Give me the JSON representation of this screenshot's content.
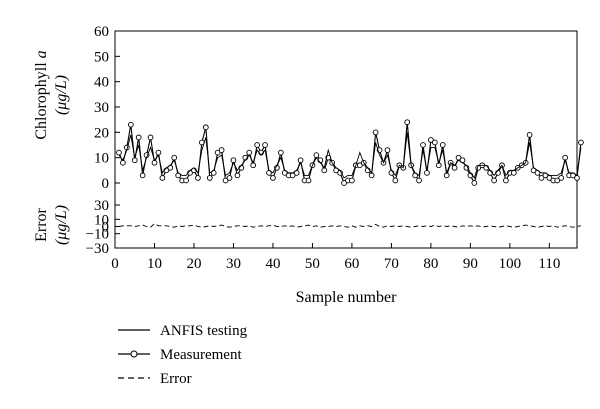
{
  "chart_data": {
    "type": "line",
    "xlabel": "Sample number",
    "x_ticks": [
      0,
      10,
      20,
      30,
      40,
      50,
      60,
      70,
      80,
      90,
      100,
      110
    ],
    "xlim": [
      0,
      117
    ],
    "upper_panel": {
      "ylabel_line1": "Chlorophyll ",
      "ylabel_var": "a",
      "ylabel_line2": "(μg/L)",
      "ylim": [
        0,
        60
      ],
      "y_ticks": [
        0,
        10,
        20,
        30,
        40,
        50,
        60
      ]
    },
    "lower_panel": {
      "ylabel_line1": "Error",
      "ylabel_line2": "(μg/L)",
      "ylim": [
        -30,
        30
      ],
      "y_ticks": [
        -30,
        -10,
        0,
        10,
        30
      ]
    },
    "legend": {
      "placement": "bottom-left",
      "entries": [
        "ANFIS testing",
        "Measurement",
        "Error"
      ]
    },
    "series": [
      {
        "name": "Measurement",
        "panel": "upper",
        "values": [
          12,
          8,
          14,
          23,
          9,
          18,
          3,
          11,
          18,
          8,
          12,
          2,
          5,
          6,
          10,
          3,
          1,
          1,
          4,
          5,
          2,
          16,
          22,
          2,
          4,
          12,
          13,
          1,
          2,
          9,
          3,
          6,
          10,
          12,
          7,
          15,
          12,
          15,
          4,
          2,
          6,
          12,
          4,
          3,
          3,
          4,
          9,
          1,
          1,
          7,
          11,
          9,
          5,
          10,
          8,
          5,
          4,
          0,
          1,
          1,
          7,
          7,
          8,
          5,
          3,
          20,
          13,
          8,
          13,
          4,
          1,
          7,
          6,
          24,
          7,
          3,
          1,
          15,
          4,
          17,
          16,
          7,
          15,
          3,
          8,
          6,
          10,
          9,
          6,
          3,
          0,
          6,
          7,
          6,
          4,
          1,
          4,
          7,
          1,
          4,
          4,
          6,
          7,
          8,
          19,
          5,
          4,
          2,
          3,
          2,
          1,
          1,
          2,
          10,
          3,
          3,
          2,
          16
        ]
      },
      {
        "name": "ANFIS testing",
        "panel": "upper",
        "values": [
          11,
          9,
          13,
          19,
          10,
          15,
          5,
          10,
          14,
          9,
          11,
          4,
          6,
          7,
          9,
          4,
          3,
          3,
          5,
          6,
          4,
          13,
          18,
          4,
          5,
          10,
          11,
          3,
          4,
          8,
          5,
          7,
          9,
          11,
          8,
          13,
          11,
          13,
          5,
          4,
          7,
          10,
          5,
          4,
          4,
          5,
          8,
          3,
          3,
          7,
          10,
          8,
          6,
          13,
          8,
          6,
          5,
          2,
          3,
          3,
          7,
          12,
          8,
          6,
          4,
          16,
          11,
          8,
          11,
          5,
          3,
          7,
          6,
          20,
          7,
          4,
          3,
          13,
          5,
          14,
          14,
          8,
          13,
          4,
          8,
          7,
          9,
          8,
          7,
          4,
          2,
          7,
          7,
          7,
          5,
          3,
          5,
          7,
          3,
          5,
          5,
          6,
          7,
          8,
          16,
          6,
          5,
          4,
          4,
          3,
          3,
          3,
          4,
          9,
          4,
          4,
          3,
          14
        ]
      },
      {
        "name": "Error",
        "panel": "lower",
        "values": [
          0,
          1,
          1,
          1,
          0,
          1,
          2,
          0,
          -1,
          4,
          1,
          1,
          1,
          0,
          -1,
          1,
          0,
          1,
          1,
          2,
          0,
          -1,
          0,
          1,
          0,
          1,
          2,
          0,
          -1,
          0,
          1,
          1,
          0,
          1,
          -1,
          0,
          1,
          0,
          1,
          2,
          0,
          0,
          1,
          0,
          1,
          -1,
          0,
          1,
          2,
          0,
          1,
          -1,
          0,
          0,
          1,
          0,
          1,
          0,
          -1,
          1,
          -1,
          1,
          0,
          1,
          0,
          3,
          0,
          -1,
          1,
          0,
          1,
          0,
          1,
          0,
          -1,
          0,
          1,
          0,
          1,
          0,
          2,
          0,
          1,
          0,
          1,
          0,
          -1,
          1,
          0,
          1,
          0,
          1,
          -1,
          0,
          1,
          0,
          -1,
          0,
          1,
          0,
          -1,
          0,
          1,
          2,
          1,
          0,
          -1,
          0,
          1,
          0,
          1,
          -1,
          0,
          1,
          0,
          -1,
          0,
          1
        ]
      }
    ]
  }
}
